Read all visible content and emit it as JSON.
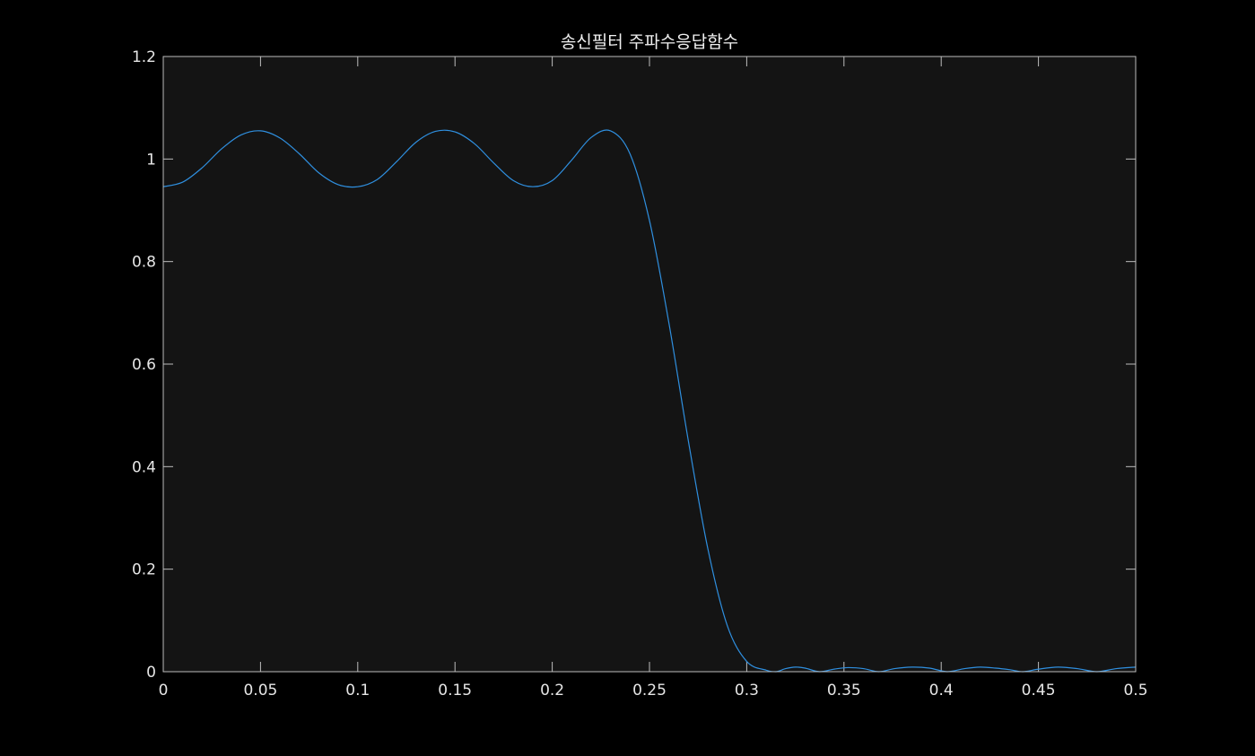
{
  "chart_data": {
    "type": "line",
    "title": "송신필터 주파수응답함수",
    "xlabel": "",
    "ylabel": "",
    "xlim": [
      0,
      0.5
    ],
    "ylim": [
      0,
      1.2
    ],
    "xticks": [
      0,
      0.05,
      0.1,
      0.15,
      0.2,
      0.25,
      0.3,
      0.35,
      0.4,
      0.45,
      0.5
    ],
    "xtick_labels": [
      "0",
      "0.05",
      "0.1",
      "0.15",
      "0.2",
      "0.25",
      "0.3",
      "0.35",
      "0.4",
      "0.45",
      "0.5"
    ],
    "yticks": [
      0,
      0.2,
      0.4,
      0.6,
      0.8,
      1,
      1.2
    ],
    "ytick_labels": [
      "0",
      "0.2",
      "0.4",
      "0.6",
      "0.8",
      "1",
      "1.2"
    ],
    "grid": false,
    "colors": {
      "figure_bg": "#000000",
      "axes_bg": "#141414",
      "axes_edge": "#bdbdbd",
      "line": "#2f8fdf"
    },
    "series": [
      {
        "x": [
          0,
          0.01,
          0.02,
          0.03,
          0.04,
          0.05,
          0.06,
          0.07,
          0.08,
          0.09,
          0.1,
          0.11,
          0.12,
          0.13,
          0.14,
          0.15,
          0.16,
          0.17,
          0.18,
          0.19,
          0.2,
          0.21,
          0.22,
          0.23,
          0.24,
          0.25,
          0.26,
          0.27,
          0.28,
          0.29,
          0.3,
          0.31,
          0.315,
          0.32,
          0.325,
          0.33,
          0.3375,
          0.345,
          0.352,
          0.36,
          0.368,
          0.376,
          0.385,
          0.394,
          0.403,
          0.412,
          0.42,
          0.428,
          0.435,
          0.442,
          0.45,
          0.46,
          0.47,
          0.48,
          0.49,
          0.5
        ],
        "values": [
          0.946,
          0.955,
          0.983,
          1.02,
          1.047,
          1.055,
          1.041,
          1.01,
          0.973,
          0.95,
          0.946,
          0.96,
          0.995,
          1.033,
          1.054,
          1.053,
          1.03,
          0.992,
          0.958,
          0.946,
          0.958,
          0.998,
          1.042,
          1.055,
          1.01,
          0.88,
          0.68,
          0.45,
          0.24,
          0.09,
          0.02,
          0.003,
          0.0,
          0.006,
          0.009,
          0.007,
          0.0,
          0.005,
          0.008,
          0.006,
          0.0,
          0.006,
          0.009,
          0.007,
          0.0,
          0.006,
          0.009,
          0.007,
          0.004,
          0.0,
          0.005,
          0.009,
          0.006,
          0.0,
          0.006,
          0.009
        ]
      }
    ]
  }
}
